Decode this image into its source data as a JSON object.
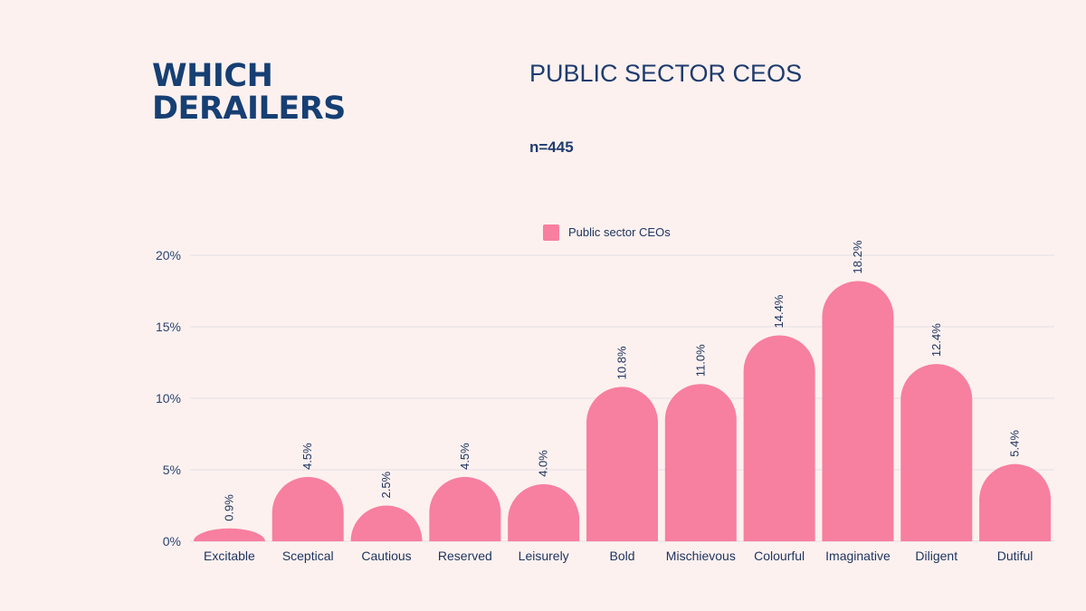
{
  "header": {
    "heading_line1": "WHICH",
    "heading_line2": "DERAILERS",
    "title": "PUBLIC SECTOR CEOS",
    "sample": "n=445"
  },
  "colors": {
    "bar": "#f77fa0",
    "text": "#1f3c6e",
    "grid": "#e3dee6",
    "background": "#fcf1ef"
  },
  "chart_data": {
    "type": "bar",
    "categories": [
      "Excitable",
      "Sceptical",
      "Cautious",
      "Reserved",
      "Leisurely",
      "Bold",
      "Mischievous",
      "Colourful",
      "Imaginative",
      "Diligent",
      "Dutiful"
    ],
    "series": [
      {
        "name": "Public sector CEOs",
        "values": [
          0.9,
          4.5,
          2.5,
          4.5,
          4.0,
          10.8,
          11.0,
          14.4,
          18.2,
          12.4,
          5.4
        ],
        "labels": [
          "0.9%",
          "4.5%",
          "2.5%",
          "4.5%",
          "4.0%",
          "10.8%",
          "11.0%",
          "14.4%",
          "18.2%",
          "12.4%",
          "5.4%"
        ]
      }
    ],
    "yticks": [
      "0%",
      "5%",
      "10%",
      "15%",
      "20%"
    ],
    "ytick_values": [
      0,
      5,
      10,
      15,
      20
    ],
    "ylim": [
      0,
      20
    ],
    "grid": true,
    "legend": "top-center"
  }
}
